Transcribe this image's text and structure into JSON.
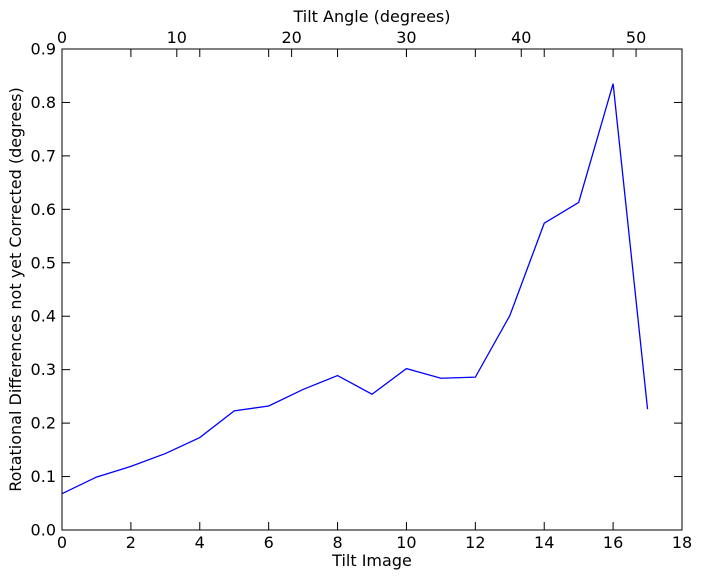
{
  "chart_data": {
    "type": "line",
    "title": "",
    "xlabel": "Tilt Image",
    "ylabel": "Rotational Differences not yet Corrected (degrees)",
    "top_xlabel": "Tilt Angle (degrees)",
    "xlim": [
      0,
      18
    ],
    "ylim": [
      0,
      0.9
    ],
    "top_xlim": [
      0,
      54
    ],
    "grid": false,
    "x_ticks": [
      "0",
      "2",
      "4",
      "6",
      "8",
      "10",
      "12",
      "14",
      "16",
      "18"
    ],
    "y_ticks": [
      "0.0",
      "0.1",
      "0.2",
      "0.3",
      "0.4",
      "0.5",
      "0.6",
      "0.7",
      "0.8",
      "0.9"
    ],
    "top_ticks": [
      "0",
      "10",
      "20",
      "30",
      "40",
      "50"
    ],
    "series": [
      {
        "color": "#0000ff",
        "x": [
          0,
          1,
          2,
          3,
          4,
          5,
          6,
          7,
          8,
          9,
          10,
          11,
          12,
          13,
          14,
          15,
          16,
          17
        ],
        "y": [
          0.068,
          0.099,
          0.119,
          0.143,
          0.173,
          0.223,
          0.232,
          0.263,
          0.289,
          0.254,
          0.302,
          0.284,
          0.286,
          0.401,
          0.574,
          0.613,
          0.835,
          0.226
        ]
      }
    ]
  }
}
